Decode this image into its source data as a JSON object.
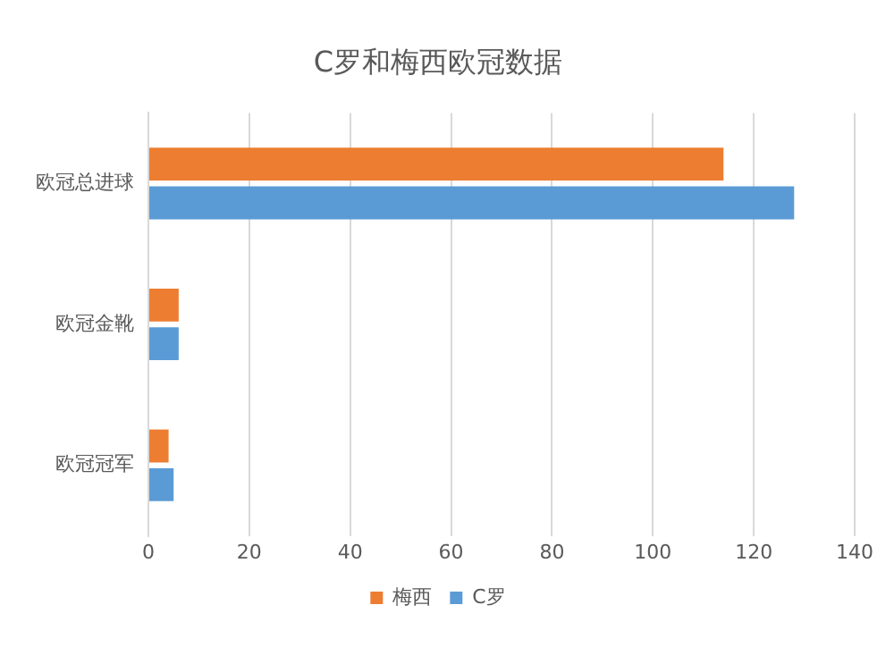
{
  "chart_data": {
    "type": "bar",
    "orientation": "horizontal",
    "title": "C罗和梅西欧冠数据",
    "categories": [
      "欧冠总进球",
      "欧冠金靴",
      "欧冠冠军"
    ],
    "series": [
      {
        "name": "梅西",
        "color": "#ed7d31",
        "values": [
          114,
          6,
          4
        ]
      },
      {
        "name": "C罗",
        "color": "#5b9bd5",
        "values": [
          128,
          6,
          5
        ]
      }
    ],
    "xlim": [
      0,
      140
    ],
    "xticks": [
      0,
      20,
      40,
      60,
      80,
      100,
      120,
      140
    ],
    "grid": "x",
    "legend": "bottom"
  }
}
